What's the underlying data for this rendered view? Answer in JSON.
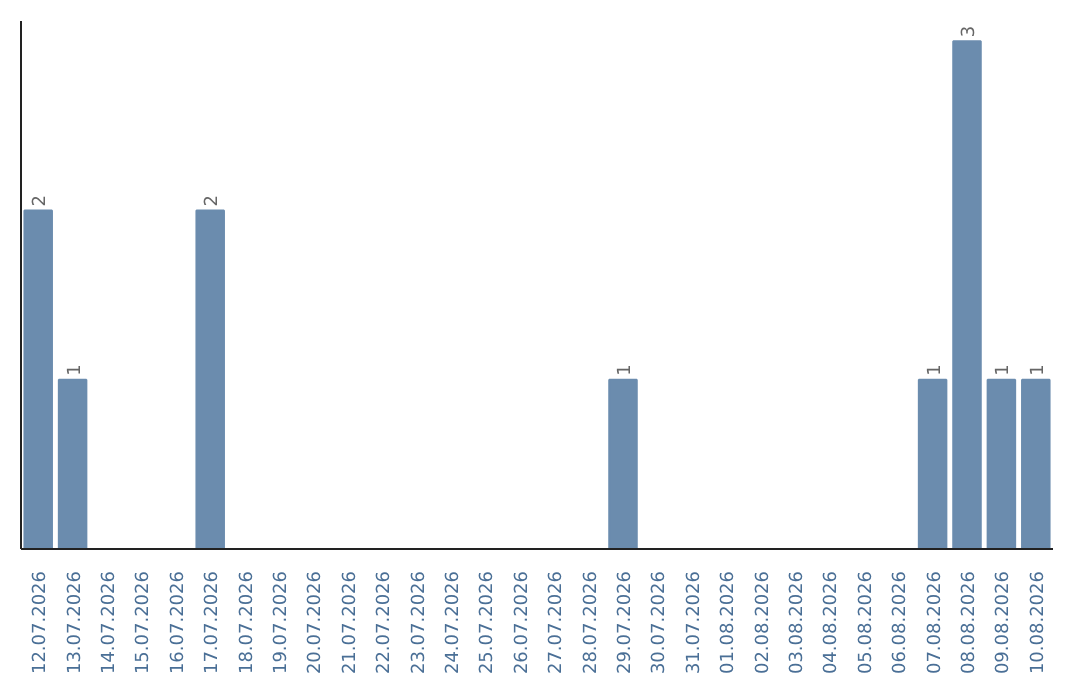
{
  "chart_data": {
    "type": "bar",
    "categories": [
      "12.07.2026",
      "13.07.2026",
      "14.07.2026",
      "15.07.2026",
      "16.07.2026",
      "17.07.2026",
      "18.07.2026",
      "19.07.2026",
      "20.07.2026",
      "21.07.2026",
      "22.07.2026",
      "23.07.2026",
      "24.07.2026",
      "25.07.2026",
      "26.07.2026",
      "27.07.2026",
      "28.07.2026",
      "29.07.2026",
      "30.07.2026",
      "31.07.2026",
      "01.08.2026",
      "02.08.2026",
      "03.08.2026",
      "04.08.2026",
      "05.08.2026",
      "06.08.2026",
      "07.08.2026",
      "08.08.2026",
      "09.08.2026",
      "10.08.2026"
    ],
    "values": [
      2,
      1,
      0,
      0,
      0,
      2,
      0,
      0,
      0,
      0,
      0,
      0,
      0,
      0,
      0,
      0,
      0,
      1,
      0,
      0,
      0,
      0,
      0,
      0,
      0,
      0,
      1,
      3,
      1,
      1
    ],
    "value_labels": [
      "2",
      "1",
      null,
      null,
      null,
      "2",
      null,
      null,
      null,
      null,
      null,
      null,
      null,
      null,
      null,
      null,
      null,
      "1",
      null,
      null,
      null,
      null,
      null,
      null,
      null,
      null,
      "1",
      "3",
      "1",
      "1"
    ],
    "color": "#6b8cae",
    "grid": false,
    "tick_labels": "x"
  }
}
